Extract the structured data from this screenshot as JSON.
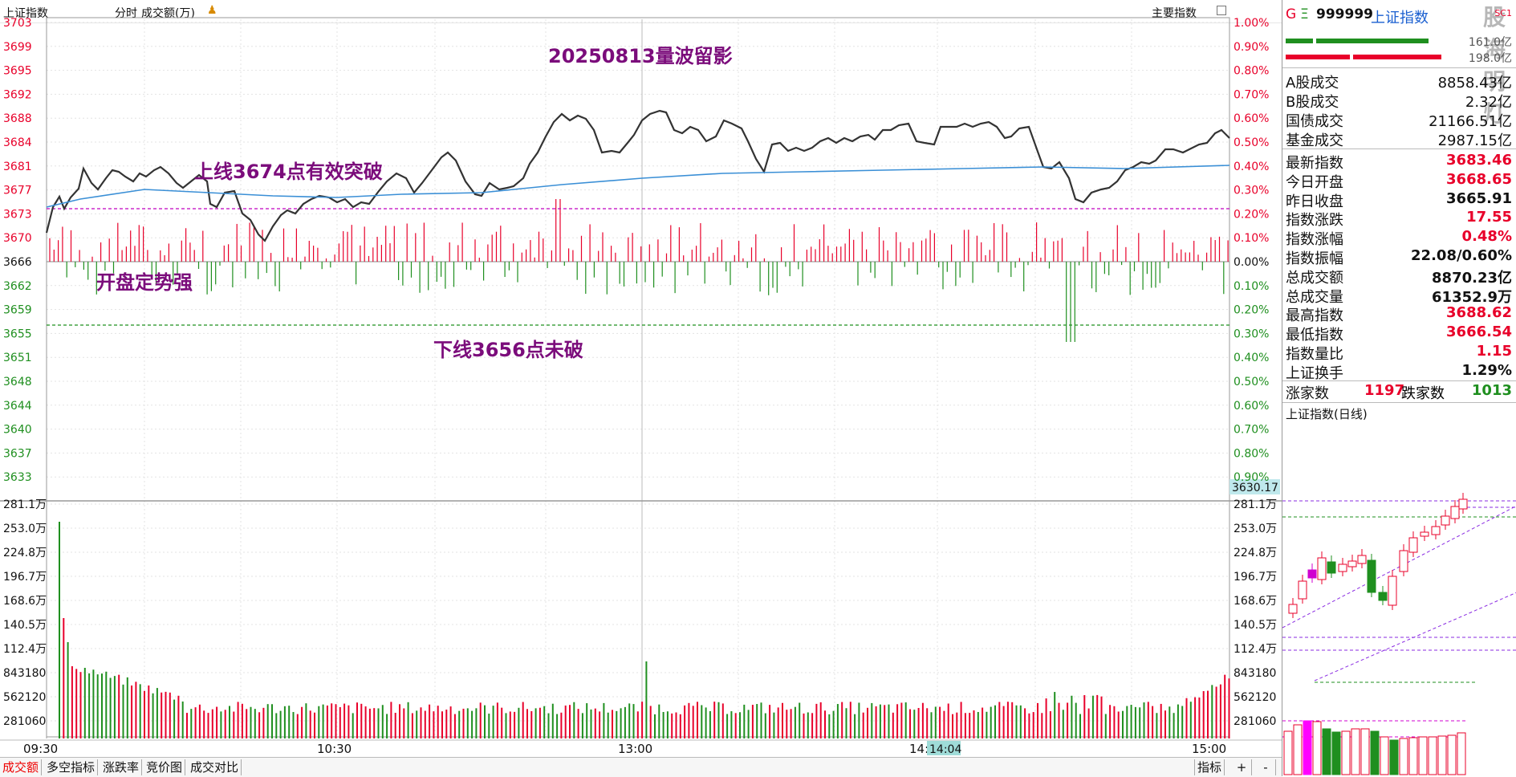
{
  "header": {
    "index_name": "上证指数",
    "tab_intraday": "分时",
    "tab_turnover": "成交额(万)",
    "main_indicator_button": "主要指数"
  },
  "annotations": {
    "title": "20250813量波留影",
    "upper_line_note": "上线3674点有效突破",
    "open_note": "开盘定势强",
    "lower_line_note": "下线3656点未破"
  },
  "price_axis": {
    "left": [
      "3703",
      "3699",
      "3695",
      "3692",
      "3688",
      "3684",
      "3681",
      "3677",
      "3673",
      "3670",
      "3666",
      "3662",
      "3659",
      "3655",
      "3651",
      "3648",
      "3644",
      "3640",
      "3637",
      "3633"
    ],
    "right": [
      "1.00%",
      "0.90%",
      "0.80%",
      "0.70%",
      "0.60%",
      "0.50%",
      "0.40%",
      "0.30%",
      "0.20%",
      "0.10%",
      "0.00%",
      "0.10%",
      "0.20%",
      "0.30%",
      "0.40%",
      "0.50%",
      "0.60%",
      "0.70%",
      "0.80%",
      "0.90%"
    ],
    "cursor_value": "3630.17"
  },
  "volume_axis": [
    "281.1万",
    "253.0万",
    "224.8万",
    "196.7万",
    "168.6万",
    "140.5万",
    "112.4万",
    "843180",
    "562120",
    "281060"
  ],
  "time_axis": [
    "09:30",
    "10:30",
    "13:00",
    "14:",
    "14:04",
    "15:00"
  ],
  "bottom_tabs": [
    "成交额",
    "多空指标",
    "涨跌率",
    "竞价图",
    "成交对比"
  ],
  "bottom_right": {
    "indicator_label": "指标",
    "plus": "+",
    "minus": "-"
  },
  "side_panel": {
    "code_prefix": "G",
    "menu_glyph": "Ξ",
    "code": "999999",
    "name": "上证指数",
    "corner_tag": "SC1",
    "watermark": "股海明灯",
    "bar_value_1": "161.0亿",
    "bar_value_2": "198.0亿",
    "turnover_rows": [
      {
        "label": "A股成交",
        "value": "8858.43亿"
      },
      {
        "label": "B股成交",
        "value": "2.32亿"
      },
      {
        "label": "国债成交",
        "value": "21166.51亿"
      },
      {
        "label": "基金成交",
        "value": "2987.15亿"
      }
    ],
    "index_rows": [
      {
        "label": "最新指数",
        "value": "3683.46",
        "color": "#e8002a"
      },
      {
        "label": "今日开盘",
        "value": "3668.65",
        "color": "#e8002a"
      },
      {
        "label": "昨日收盘",
        "value": "3665.91",
        "color": "#111111"
      },
      {
        "label": "指数涨跌",
        "value": "17.55",
        "color": "#e8002a"
      },
      {
        "label": "指数涨幅",
        "value": "0.48%",
        "color": "#e8002a"
      },
      {
        "label": "指数振幅",
        "value": "22.08/0.60%",
        "color": "#111111"
      },
      {
        "label": "总成交额",
        "value": "8870.23亿",
        "color": "#111111"
      },
      {
        "label": "总成交量",
        "value": "61352.9万",
        "color": "#111111"
      },
      {
        "label": "最高指数",
        "value": "3688.62",
        "color": "#e8002a"
      },
      {
        "label": "最低指数",
        "value": "3666.54",
        "color": "#e8002a"
      },
      {
        "label": "指数量比",
        "value": "1.15",
        "color": "#e8002a"
      },
      {
        "label": "上证换手",
        "value": "1.29%",
        "color": "#111111"
      }
    ],
    "breadth": {
      "up_label": "涨家数",
      "up_value": "1197",
      "down_label": "跌家数",
      "down_value": "1013"
    },
    "daily_chart_title": "上证指数(日线)"
  },
  "colors": {
    "up": "#e8002a",
    "down": "#1f8f1f",
    "annotation": "#7b0c7b",
    "price_line": "#333333",
    "avg_line": "#3a8fd6",
    "dash_line": "#c000c0"
  }
}
